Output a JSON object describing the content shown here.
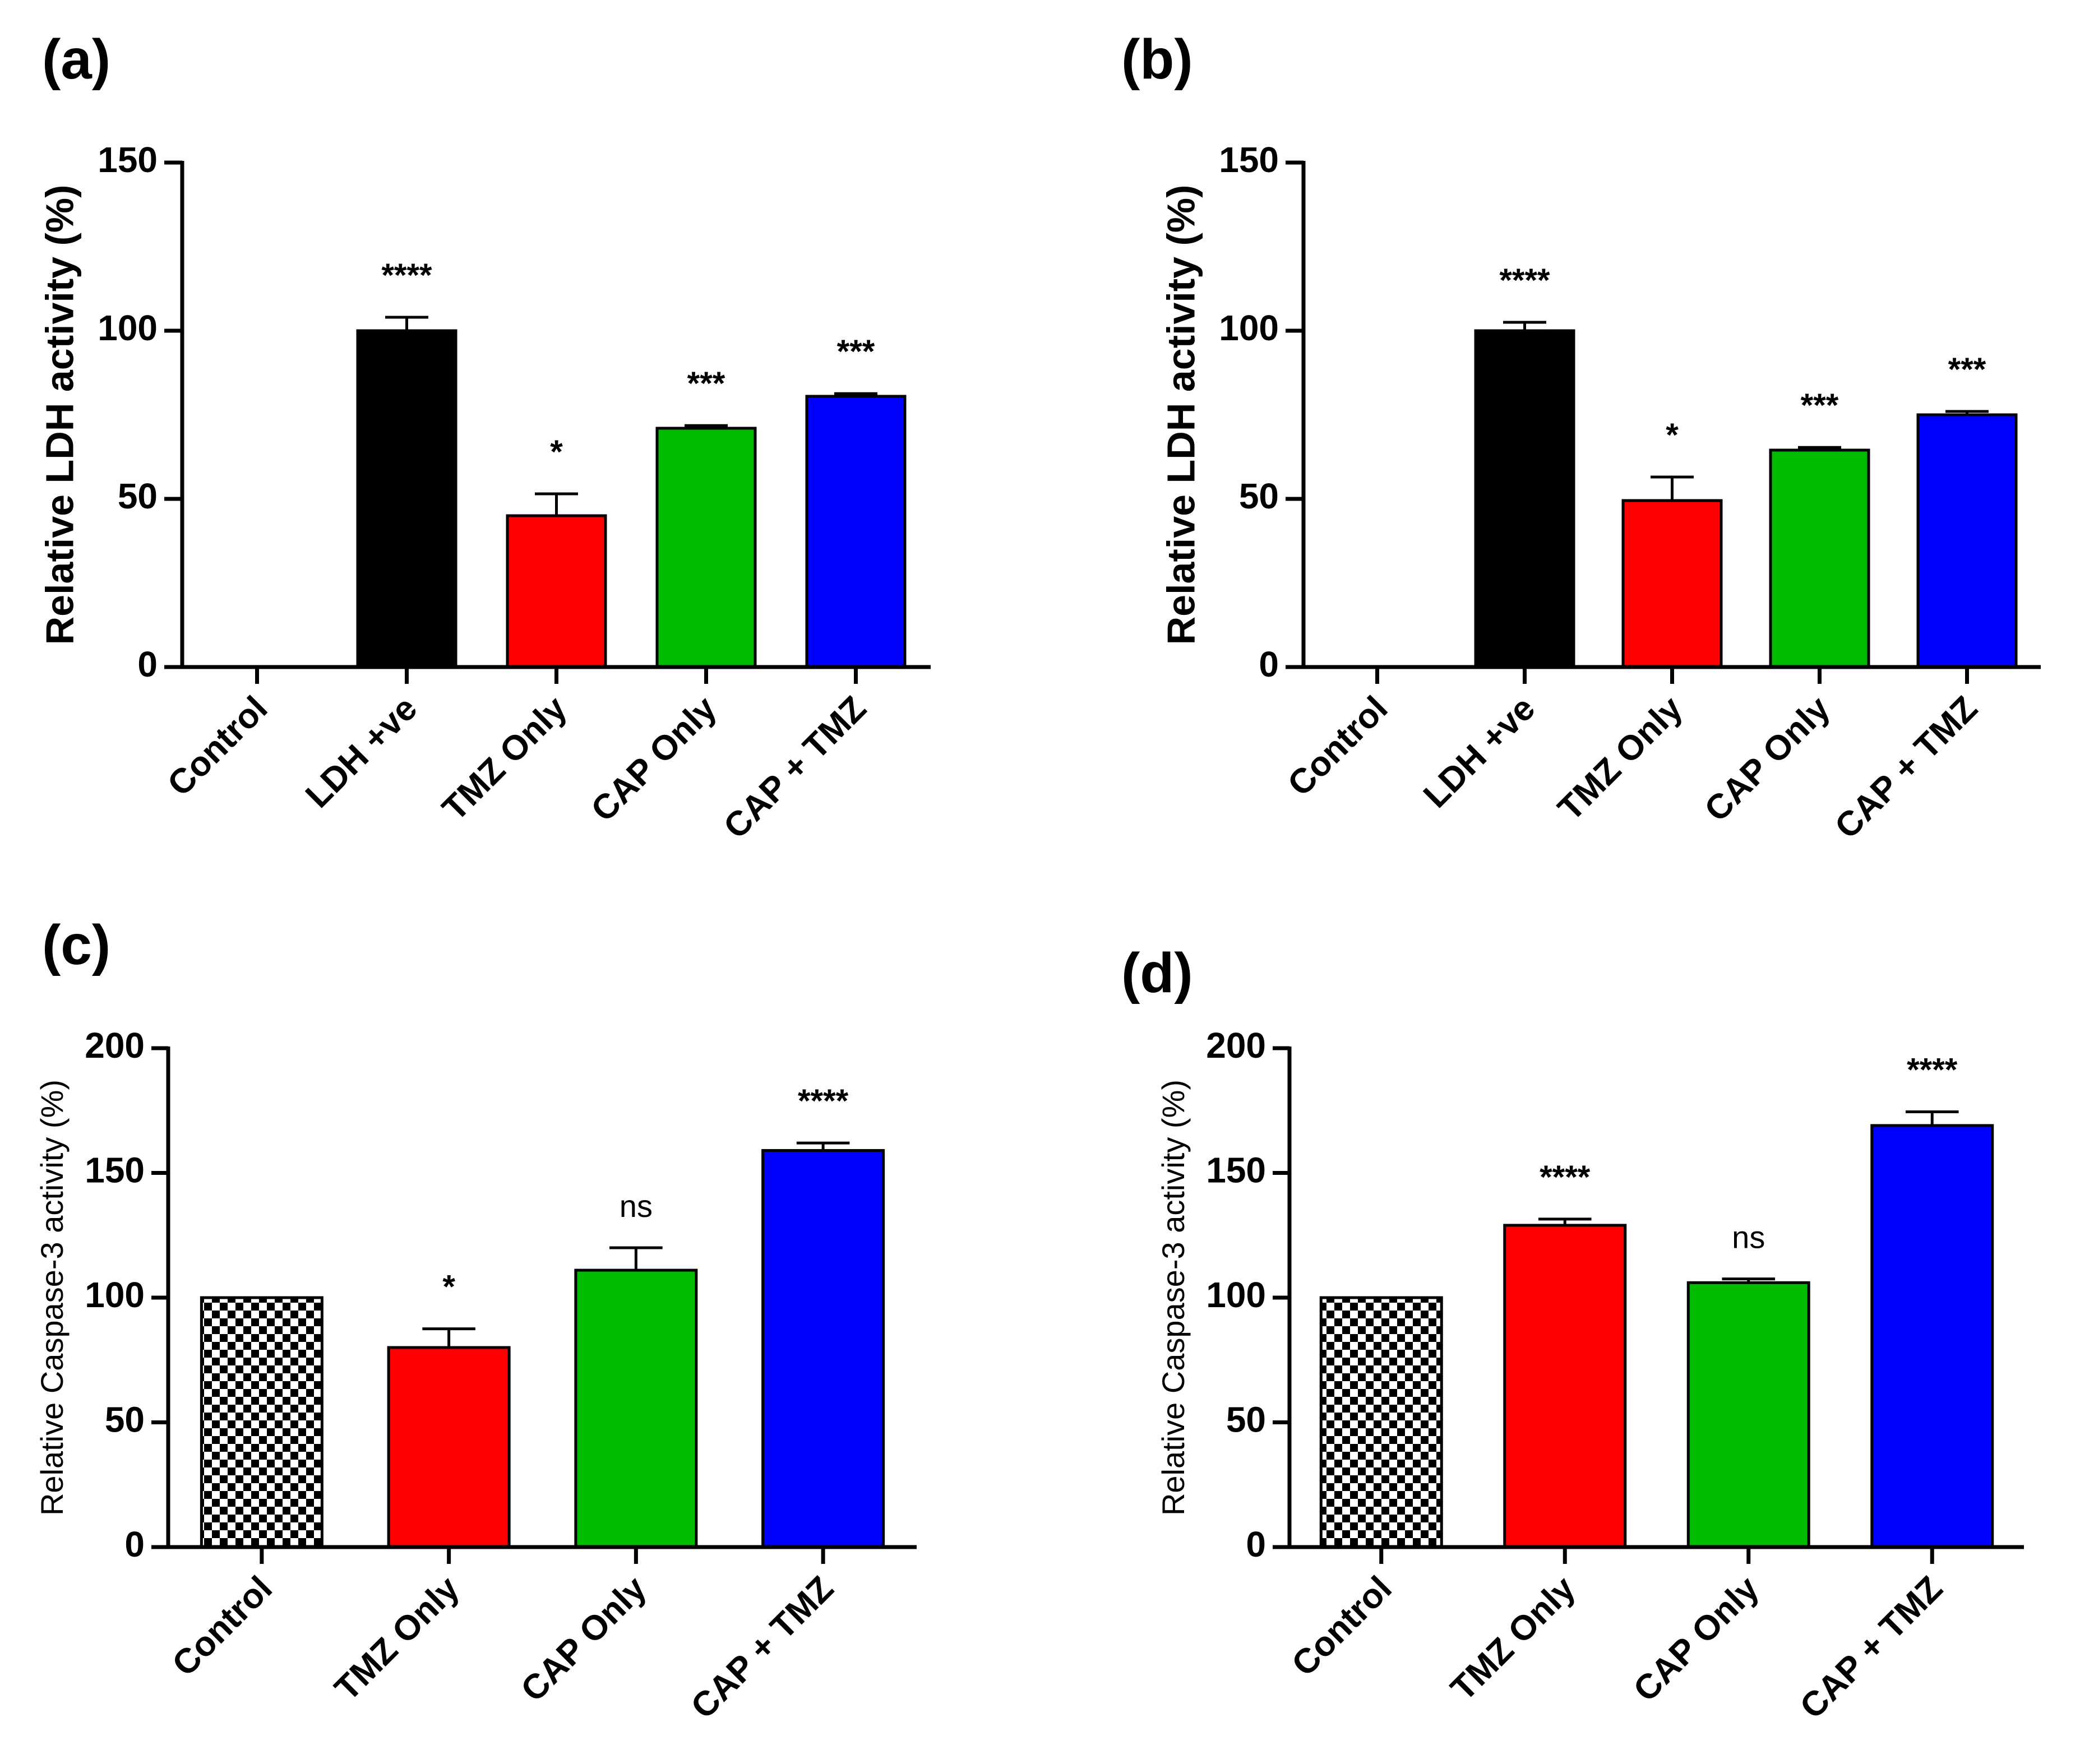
{
  "chart_data": [
    {
      "type": "bar",
      "panel_label": "(a)",
      "ylabel": "Relative LDH activity (%)",
      "ylim": [
        0,
        150
      ],
      "yticks": [
        0,
        50,
        100,
        150
      ],
      "ytick_labels": [
        "0",
        "50",
        "100",
        "150"
      ],
      "categories": [
        "Control",
        "LDH +ve",
        "TMZ Only",
        "CAP Only",
        "CAP + TMZ"
      ],
      "values": [
        0,
        100,
        45,
        71,
        80.5
      ],
      "errors": [
        0,
        4,
        6.5,
        0.8,
        0.8
      ],
      "significance": [
        "",
        "****",
        "*",
        "***",
        "***"
      ],
      "colors": [
        "#000000",
        "#000000",
        "#ff0000",
        "#00bb00",
        "#0000ff"
      ],
      "patterns": [
        "solid",
        "solid",
        "solid",
        "solid",
        "solid"
      ]
    },
    {
      "type": "bar",
      "panel_label": "(b)",
      "ylabel": "Relative LDH activity (%)",
      "ylim": [
        0,
        150
      ],
      "yticks": [
        0,
        50,
        100,
        150
      ],
      "ytick_labels": [
        "0",
        "50",
        "100",
        "150"
      ],
      "categories": [
        "Control",
        "LDH +ve",
        "TMZ Only",
        "CAP Only",
        "CAP + TMZ"
      ],
      "values": [
        0,
        100,
        49.5,
        64.5,
        75
      ],
      "errors": [
        0,
        2.5,
        7,
        0.8,
        1
      ],
      "significance": [
        "",
        "****",
        "*",
        "***",
        "***"
      ],
      "colors": [
        "#000000",
        "#000000",
        "#ff0000",
        "#00bb00",
        "#0000ff"
      ],
      "patterns": [
        "solid",
        "solid",
        "solid",
        "solid",
        "solid"
      ]
    },
    {
      "type": "bar",
      "panel_label": "(c)",
      "ylabel": "Relative Caspase-3 activity (%)",
      "ylim": [
        0,
        200
      ],
      "yticks": [
        0,
        50,
        100,
        150,
        200
      ],
      "ytick_labels": [
        "0",
        "50",
        "100",
        "150",
        "200"
      ],
      "categories": [
        "Control",
        "TMZ Only",
        "CAP Only",
        "CAP + TMZ"
      ],
      "values": [
        100,
        80,
        111,
        159
      ],
      "errors": [
        0,
        7.5,
        9,
        3
      ],
      "significance": [
        "",
        "*",
        "ns",
        "****"
      ],
      "colors": [
        "#000000",
        "#ff0000",
        "#00bb00",
        "#0000ff"
      ],
      "patterns": [
        "checker",
        "solid",
        "solid",
        "solid"
      ]
    },
    {
      "type": "bar",
      "panel_label": "(d)",
      "ylabel": "Relative Caspase-3 activity (%)",
      "ylim": [
        0,
        200
      ],
      "yticks": [
        0,
        50,
        100,
        150,
        200
      ],
      "ytick_labels": [
        "0",
        "50",
        "100",
        "150",
        "200"
      ],
      "categories": [
        "Control",
        "TMZ Only",
        "CAP Only",
        "CAP + TMZ"
      ],
      "values": [
        100,
        129,
        106,
        169
      ],
      "errors": [
        0,
        2.5,
        1.5,
        5.5
      ],
      "significance": [
        "",
        "****",
        "ns",
        "****"
      ],
      "colors": [
        "#000000",
        "#ff0000",
        "#00bb00",
        "#0000ff"
      ],
      "patterns": [
        "checker",
        "solid",
        "solid",
        "solid"
      ]
    }
  ]
}
